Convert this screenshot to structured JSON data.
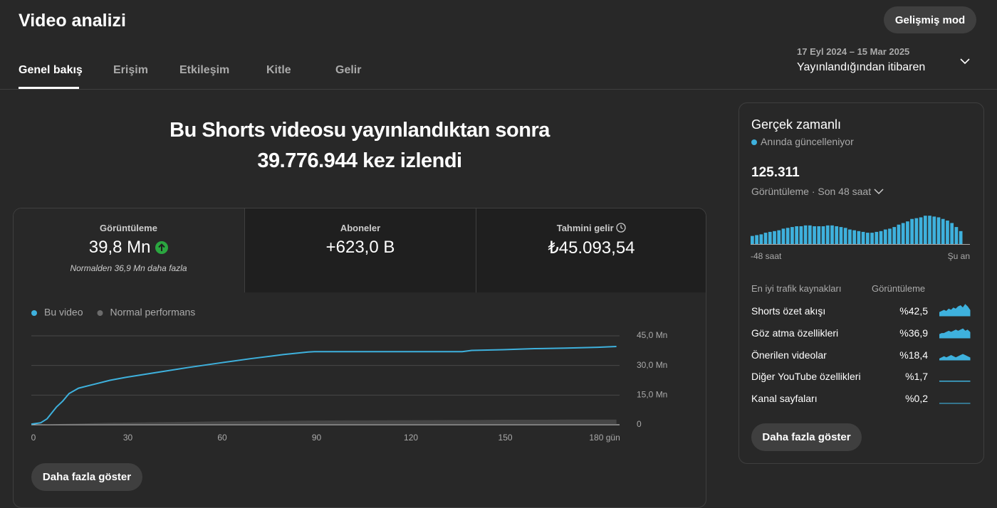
{
  "header": {
    "title": "Video analizi",
    "advanced_button": "Gelişmiş mod"
  },
  "tabs": [
    "Genel bakış",
    "Erişim",
    "Etkileşim",
    "Kitle",
    "Gelir"
  ],
  "date_range": {
    "dates": "17 Eyl 2024 – 15 Mar 2025",
    "label": "Yayınlandığından itibaren"
  },
  "headline": "Bu Shorts videosu yayınlandıktan sonra 39.776.944 kez izlendi",
  "metrics": [
    {
      "label": "Görüntüleme",
      "value": "39,8 Mn",
      "note": "Normalden 36,9 Mn daha fazla"
    },
    {
      "label": "Aboneler",
      "value": "+623,0 B"
    },
    {
      "label": "Tahmini gelir",
      "value": "₺45.093,54"
    }
  ],
  "show_more": "Daha fazla göster",
  "chart_data": [
    {
      "type": "line",
      "x": [
        0,
        3,
        5,
        8,
        10,
        12,
        15,
        20,
        25,
        30,
        40,
        50,
        60,
        70,
        80,
        88,
        90,
        100,
        120,
        137,
        140,
        150,
        160,
        170,
        180,
        186
      ],
      "series": [
        {
          "name": "Bu video",
          "color": "#3eb1dd",
          "values": [
            0.3,
            1,
            3,
            9,
            12,
            15.8,
            18.5,
            20.5,
            22.5,
            24,
            26.5,
            29,
            31.3,
            33.5,
            35.5,
            36.8,
            37,
            37,
            37,
            37,
            37.6,
            38,
            38.5,
            38.8,
            39.2,
            39.6
          ]
        },
        {
          "name": "Normal performans",
          "color": "#6b6b6b",
          "values": [
            0,
            0.1,
            0.2,
            0.3,
            0.4,
            0.5,
            0.6,
            0.8,
            1,
            1.1,
            1.3,
            1.5,
            1.7,
            1.9,
            2,
            2.1,
            2.1,
            2.2,
            2.3,
            2.4,
            2.4,
            2.5,
            2.5,
            2.6,
            2.6,
            2.6
          ]
        }
      ],
      "xlim": [
        0,
        187
      ],
      "xticks": [
        0,
        30,
        60,
        90,
        120,
        150,
        {
          "value": 180,
          "label": "180 gün"
        }
      ],
      "ylim": [
        0,
        45
      ],
      "yticks": [
        0,
        {
          "value": 15,
          "label": "15,0 Mn"
        },
        {
          "value": 30,
          "label": "30,0 Mn"
        },
        {
          "value": 45,
          "label": "45,0 Mn"
        }
      ],
      "grid": true
    },
    {
      "type": "bar",
      "color": "#3eb1dd",
      "values": [
        1250,
        1380,
        1500,
        1750,
        1880,
        2000,
        2130,
        2380,
        2500,
        2630,
        2750,
        2750,
        2880,
        2880,
        2750,
        2750,
        2750,
        2880,
        2880,
        2750,
        2630,
        2500,
        2250,
        2130,
        2000,
        1880,
        1750,
        1750,
        1880,
        2000,
        2250,
        2380,
        2630,
        3000,
        3250,
        3500,
        3880,
        4000,
        4130,
        4380,
        4380,
        4250,
        4130,
        3880,
        3630,
        3250,
        2630,
        2000
      ],
      "ylim": [
        0,
        4400
      ],
      "axis_labels": [
        "-48 saat",
        "Şu an"
      ]
    }
  ],
  "realtime": {
    "title": "Gerçek zamanlı",
    "status": "Anında güncelleniyor",
    "total": "125.311",
    "period": "Görüntüleme · Son 48 saat",
    "sources_header": [
      "En iyi trafik kaynakları",
      "Görüntüleme"
    ],
    "sources": [
      {
        "name": "Shorts özet akışı",
        "share": "%42,5",
        "trend": [
          3,
          4,
          5,
          4,
          6,
          5,
          7,
          6,
          8,
          9,
          7,
          10,
          8,
          5
        ]
      },
      {
        "name": "Göz atma özellikleri",
        "share": "%36,9",
        "trend": [
          3,
          4,
          4,
          5,
          6,
          5,
          6,
          7,
          6,
          7,
          8,
          6,
          7,
          5
        ]
      },
      {
        "name": "Önerilen videolar",
        "share": "%18,4",
        "trend": [
          1,
          2,
          3,
          2,
          3,
          4,
          3,
          2,
          3,
          4,
          5,
          4,
          3,
          2
        ]
      },
      {
        "name": "Diğer YouTube özellikleri",
        "share": "%1,7",
        "trend": [
          0.3,
          0.3,
          0.3,
          0.3,
          0.3,
          0.3,
          0.3,
          0.3,
          0.3,
          0.3,
          0.3,
          0.3,
          0.3,
          0.3
        ]
      },
      {
        "name": "Kanal sayfaları",
        "share": "%0,2",
        "trend": [
          0.1,
          0.1,
          0.1,
          0.1,
          0.1,
          0.1,
          0.1,
          0.1,
          0.1,
          0.1,
          0.1,
          0.1,
          0.1,
          0.1
        ]
      }
    ],
    "show_more": "Daha fazla göster"
  }
}
